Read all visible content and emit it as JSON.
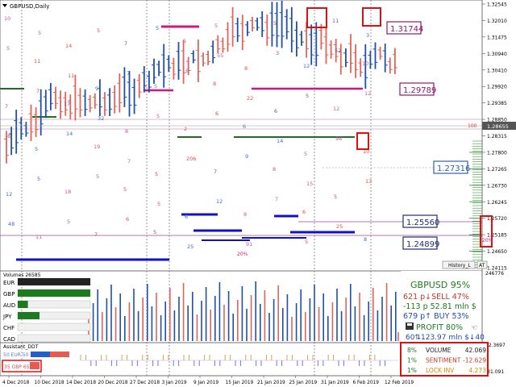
{
  "chart": {
    "symbol_title": "GBPUSD,Daily",
    "top_right_price": "1.32545",
    "price_ticks": [
      "1.32545",
      "1.32010",
      "1.31475",
      "1.30940",
      "1.30410",
      "1.29920",
      "1.29385",
      "1.28850",
      "1.28315",
      "1.27800",
      "1.27265",
      "1.26730",
      "1.26245",
      "1.25720",
      "1.25185",
      "1.24650",
      "1.24115"
    ],
    "current_price": "1.28655",
    "current_marker": "100",
    "boxed_levels": [
      "1.31744",
      "1.29789",
      "1.27316",
      "1.25560",
      "1.24899"
    ],
    "box_level_colors": [
      "#8b1a6b",
      "#8b1a6b",
      "#3060b0",
      "#1e2d6e",
      "#1e2d6e"
    ],
    "percent_labels": [
      "20%",
      "20%"
    ],
    "scattered_numbers": [
      "10",
      "11",
      "17",
      "19",
      "5",
      "5",
      "5",
      "8",
      "6",
      "8",
      "6",
      "11",
      "10",
      "7",
      "5",
      "18",
      "7",
      "7",
      "5",
      "2",
      "7",
      "8",
      "5",
      "12",
      "12",
      "10",
      "12",
      "11",
      "14",
      "9",
      "8",
      "5",
      "6",
      "5",
      "8",
      "6",
      "5",
      "5",
      "8",
      "5",
      "7",
      "14",
      "5",
      "6",
      "5",
      "8",
      "6",
      "9",
      "7",
      "5",
      "52",
      "12",
      "8",
      "5",
      "5",
      "5",
      "7",
      "5",
      "206",
      "12",
      "91",
      "3",
      "5",
      "98",
      "13",
      "48",
      "5",
      "11",
      "32",
      "7",
      "5",
      "25",
      "55",
      "22",
      "14",
      "15",
      "25",
      "3"
    ],
    "buttons": {
      "history": "History_L",
      "at": "AT"
    }
  },
  "volumes": {
    "title": "Volumes 26585",
    "right_value": "246776",
    "currencies": [
      {
        "code": "EUR",
        "fill": 1.0,
        "color": "#222222"
      },
      {
        "code": "GBP",
        "fill": 1.0,
        "color": "#1e7a1e"
      },
      {
        "code": "AUD",
        "fill": 0.14,
        "color": "#1e7a1e"
      },
      {
        "code": "JPY",
        "fill": 0.3,
        "color": "#1e7a1e"
      },
      {
        "code": "CHF",
        "fill": 0.0,
        "color": "#1e7a1e"
      },
      {
        "code": "CAD",
        "fill": 0.0,
        "color": "#1e7a1e"
      }
    ],
    "stats": {
      "pair": "GBPUSD 95%",
      "sell": "621 p↓SELL 47%",
      "mln": "-113 p  52.81 mln $",
      "buy": "679 p↑ BUY 53%",
      "profit": "PROFIT 80%",
      "line": "60⇅123.97 mln $↓40"
    }
  },
  "assistant": {
    "title": "Assistant_DDT",
    "right_value_top": "22.3697",
    "right_value_bottom": "-31.091",
    "eur_label": "50 EUR 50",
    "small_box": "35 GBP 65",
    "panel": [
      {
        "pct": "8%",
        "label": "VOLUME",
        "value": "42.069",
        "color": "#1a1a1a",
        "pct_color": "#1e7a1e"
      },
      {
        "pct": "1%",
        "label": "SENTIMENT",
        "value": "-12.629",
        "color": "#c0392b",
        "pct_color": "#1e7a1e"
      },
      {
        "pct": "1%",
        "label": "LOCK INV",
        "value": "4.273",
        "color": "#d08a00",
        "pct_color": "#1e7a1e"
      }
    ]
  },
  "dates": [
    "4 Dec 2018",
    "10 Dec 2018",
    "14 Dec 2018",
    "20 Dec 2018",
    "27 Dec 2018",
    "3 Jan 2019",
    "9 Jan 2019",
    "15 Jan 2019",
    "21 Jan 2019",
    "25 Jan 2019",
    "31 Jan 2019",
    "6 Feb 2019",
    "12 Feb 2019"
  ],
  "colors": {
    "up": "#1f4fa8",
    "down": "#e0645a",
    "magenta": "#d6157a",
    "green": "#1e6e1e",
    "blue": "#1010c8"
  }
}
